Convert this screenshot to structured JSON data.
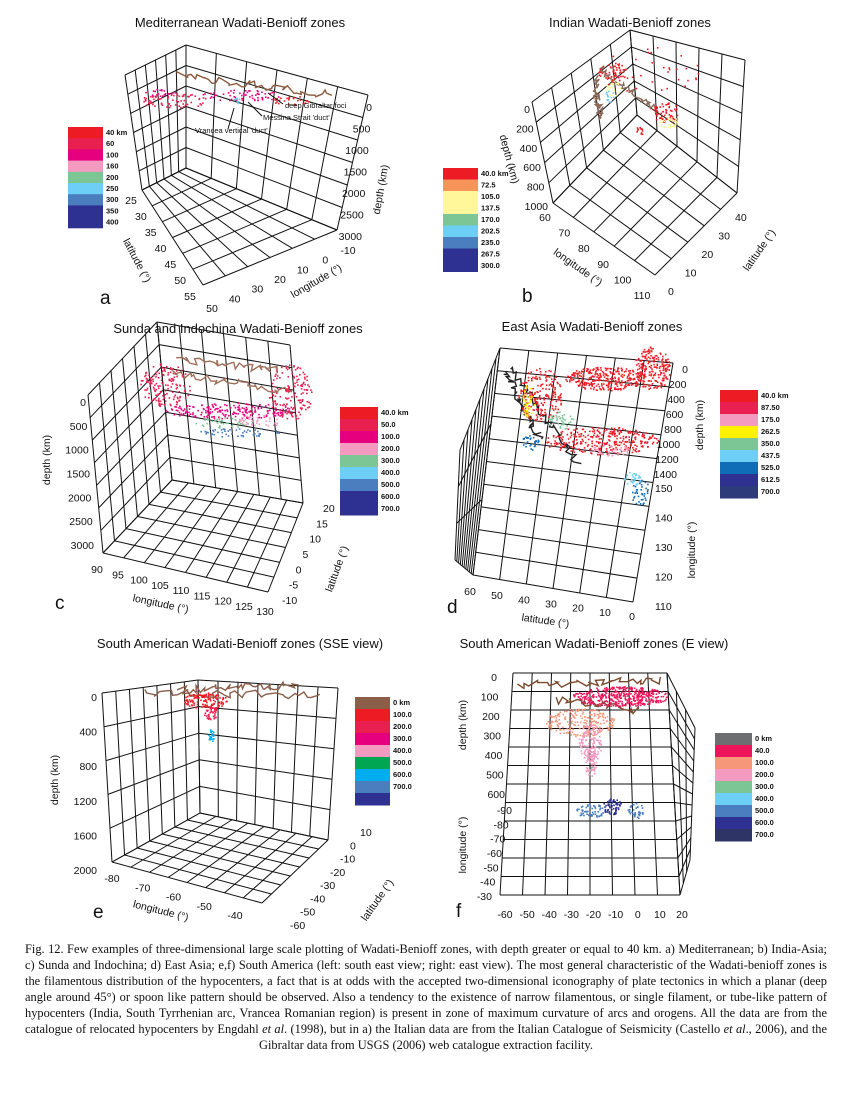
{
  "figure": {
    "panels": [
      {
        "id": "a",
        "letter": "a",
        "title": "Mediterranean Wadati-Benioff zones",
        "legend": {
          "labels": [
            "40 km",
            "60",
            "100",
            "160",
            "200",
            "250",
            "300",
            "350",
            "400"
          ],
          "colors": [
            "#ed1c24",
            "#e81f4f",
            "#e6007e",
            "#f49ac1",
            "#7cc595",
            "#6dcff6",
            "#4a7ebf",
            "#2e3192",
            "#2e3192"
          ]
        },
        "axes": {
          "depth": {
            "title": "depth (km)",
            "ticks": [
              "0",
              "500",
              "1000",
              "1500",
              "2000",
              "2500",
              "3000"
            ]
          },
          "latitude": {
            "title": "latitude (°)",
            "ticks": [
              "25",
              "30",
              "35",
              "40",
              "45",
              "50",
              "55"
            ]
          },
          "longitude": {
            "title": "longitude (°)",
            "ticks": [
              "-10",
              "0",
              "10",
              "20",
              "30",
              "40",
              "50"
            ]
          }
        },
        "annotations": [
          "deep Gibraltar foci",
          "Messina Strait 'duct'",
          "Vrancea vertical 'duct'"
        ]
      },
      {
        "id": "b",
        "letter": "b",
        "title": "Indian Wadati-Benioff zones",
        "legend": {
          "labels": [
            "40.0 km",
            "72.5",
            "105.0",
            "137.5",
            "170.0",
            "202.5",
            "235.0",
            "267.5",
            "300.0"
          ],
          "colors": [
            "#ed1c24",
            "#f7945a",
            "#fff799",
            "#fff799",
            "#7cc595",
            "#6dcff6",
            "#4a7ebf",
            "#2e3192",
            "#2e3192"
          ]
        },
        "axes": {
          "depth": {
            "title": "depth (km)",
            "ticks": [
              "0",
              "200",
              "400",
              "600",
              "800",
              "1000"
            ]
          },
          "longitude": {
            "title": "longitude (°)",
            "ticks": [
              "60",
              "70",
              "80",
              "90",
              "100",
              "110"
            ]
          },
          "latitude": {
            "title": "latitude (°)",
            "ticks": [
              "0",
              "10",
              "20",
              "30",
              "40"
            ]
          }
        },
        "annotations": []
      },
      {
        "id": "c",
        "letter": "c",
        "title": "Sunda and Indochina Wadati-Benioff zones",
        "legend": {
          "labels": [
            "40.0 km",
            "50.0",
            "100.0",
            "200.0",
            "300.0",
            "400.0",
            "500.0",
            "600.0",
            "700.0"
          ],
          "colors": [
            "#ed1c24",
            "#e81f4f",
            "#e6007e",
            "#f49ac1",
            "#7cc595",
            "#6dcff6",
            "#4a7ebf",
            "#2e3192",
            "#2e3192"
          ]
        },
        "axes": {
          "depth": {
            "title": "depth (km)",
            "ticks": [
              "0",
              "500",
              "1000",
              "1500",
              "2000",
              "2500",
              "3000"
            ]
          },
          "longitude": {
            "title": "longitude (°)",
            "ticks": [
              "90",
              "95",
              "100",
              "105",
              "110",
              "115",
              "120",
              "125",
              "130"
            ]
          },
          "latitude": {
            "title": "latitude (°)",
            "ticks": [
              "-10",
              "-5",
              "0",
              "5",
              "10",
              "15",
              "20"
            ]
          }
        },
        "annotations": []
      },
      {
        "id": "d",
        "letter": "d",
        "title": "East Asia Wadati-Benioff zones",
        "legend": {
          "labels": [
            "40.0 km",
            "87.50",
            "175.0",
            "262.5",
            "350.0",
            "437.5",
            "525.0",
            "612.5",
            "700.0"
          ],
          "colors": [
            "#ed1c24",
            "#e81f4f",
            "#f49ac1",
            "#fff200",
            "#7cc595",
            "#6dcff6",
            "#0f6cb6",
            "#2e3192",
            "#2e3b7a"
          ]
        },
        "axes": {
          "depth": {
            "title": "depth (km)",
            "ticks": [
              "0",
              "200",
              "400",
              "600",
              "800",
              "1000",
              "1200",
              "1400"
            ]
          },
          "longitude": {
            "title": "longitude (°)",
            "ticks": [
              "150",
              "140",
              "130",
              "120",
              "110"
            ]
          },
          "latitude": {
            "title": "latitude (°)",
            "ticks": [
              "60",
              "50",
              "40",
              "30",
              "20",
              "10",
              "0"
            ]
          }
        },
        "annotations": []
      },
      {
        "id": "e",
        "letter": "e",
        "title": "South American Wadati-Benioff zones (SSE view)",
        "legend": {
          "labels": [
            "0 km",
            "100.0",
            "200.0",
            "300.0",
            "400.0",
            "500.0",
            "600.0",
            "700.0"
          ],
          "colors": [
            "#8b5e4a",
            "#ed1c24",
            "#e81f4f",
            "#e6007e",
            "#f49ac1",
            "#00a651",
            "#00aeef",
            "#4a7ebf",
            "#2e3192"
          ]
        },
        "axes": {
          "depth": {
            "title": "depth (km)",
            "ticks": [
              "0",
              "400",
              "800",
              "1200",
              "1600",
              "2000"
            ]
          },
          "longitude": {
            "title": "longitude (°)",
            "ticks": [
              "-80",
              "-70",
              "-60",
              "-50",
              "-40"
            ]
          },
          "latitude": {
            "title": "latitude (°)",
            "ticks": [
              "10",
              "0",
              "-10",
              "-20",
              "-30",
              "-40",
              "-50",
              "-60"
            ]
          }
        },
        "annotations": []
      },
      {
        "id": "f",
        "letter": "f",
        "title": "South American Wadati-Benioff zones (E view)",
        "legend": {
          "labels": [
            "0 km",
            "40.0",
            "100.0",
            "200.0",
            "300.0",
            "400.0",
            "500.0",
            "600.0",
            "700.0"
          ],
          "colors": [
            "#6d6e71",
            "#ed145b",
            "#f7977a",
            "#f49ac1",
            "#7cc595",
            "#6dcff6",
            "#4a7ebf",
            "#2e3192",
            "#2e3466"
          ]
        },
        "axes": {
          "depth": {
            "title": "depth (km)",
            "ticks": [
              "0",
              "100",
              "200",
              "300",
              "400",
              "500",
              "600"
            ]
          },
          "latitude": {
            "title": "longitude (°)",
            "ticks": [
              "-90",
              "-80",
              "-70",
              "-60",
              "-50",
              "-40",
              "-30"
            ]
          },
          "longitude": {
            "title": "",
            "ticks": [
              "-60",
              "-50",
              "-40",
              "-30",
              "-20",
              "-10",
              "0",
              "10",
              "20"
            ]
          }
        },
        "annotations": []
      }
    ]
  },
  "caption": {
    "segments": [
      {
        "t": "Fig. 12. Few examples of three-dimensional large scale plotting of Wadati-Benioff zones, with depth greater or equal to 40 km. a) Mediterranean; b) India-Asia; c) Sunda and Indochina; d) East Asia; e,f) South America (left: south east view; right: east view). The most general characteristic of the Wadati-benioff zones is the filamentous distribution of the hypocenters, a fact that is at odds with the accepted two-dimensional iconography of plate tectonics in which a planar (deep angle around 45°) or spoon like pattern should be observed. Also a tendency to the existence of narrow filamentous, or single filament, or tube-like pattern of hypocenters (India, South Tyrrhenian arc, Vrancea Romanian region) is present in zone of maximum curvature of arcs and orogens. All the data are from the catalogue of relocated hypocenters by Engdahl ",
        "i": false
      },
      {
        "t": "et al",
        "i": true
      },
      {
        "t": ". (1998), but in a) the Italian data are from the Italian Catalogue of Seismicity (Castello ",
        "i": false
      },
      {
        "t": "et al",
        "i": true
      },
      {
        "t": "., 2006), and the Gibraltar data from USGS (2006) web catalogue extraction facility.",
        "i": false
      }
    ]
  }
}
